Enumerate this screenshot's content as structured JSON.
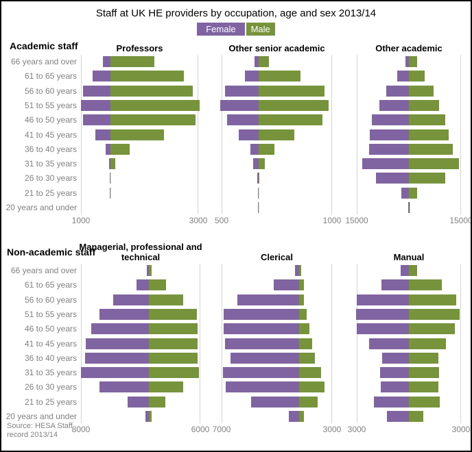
{
  "page": {
    "title": "Staff at UK HE providers by occupation, age and sex 2013/14",
    "section_labels": {
      "academic": "Academic staff",
      "non_academic": "Non-academic staff"
    },
    "legend": {
      "female": "Female",
      "male": "Male"
    },
    "source": "Source: HESA Staff record 2013/14"
  },
  "colors": {
    "female": "#8064a2",
    "male": "#77933c",
    "axis_text": "#808080",
    "gridline": "#d3d3d3",
    "near_zero_tick": "#595959"
  },
  "chart_data": {
    "type": "bar",
    "subtype": "population-pyramid-small-multiples",
    "title": "Staff at UK HE providers by occupation, age and sex 2013/14",
    "legend_entries": [
      "Female",
      "Male"
    ],
    "legend_position": "top-center",
    "orientation": "female-left-male-right",
    "grid": "vertical-edge-gridlines-only",
    "categories": [
      "66 years and over",
      "61 to 65 years",
      "56 to 60 years",
      "51 to 55 years",
      "46 to 50 years",
      "41 to 45 years",
      "36 to 40 years",
      "31 to 35 years",
      "26 to 30 years",
      "21 to 25 years",
      "20 years and under"
    ],
    "charts": [
      {
        "title": "Professors",
        "section": "Academic staff",
        "female_axis_max": 1000,
        "male_axis_max": 3000,
        "axis_labels": {
          "left": "1000",
          "right": "3000"
        },
        "series": [
          {
            "name": "Female",
            "values": [
              240,
              610,
              940,
              1000,
              920,
              520,
              165,
              40,
              10,
              5,
              0
            ]
          },
          {
            "name": "Male",
            "values": [
              1500,
              2510,
              2820,
              3050,
              2900,
              1830,
              660,
              160,
              20,
              10,
              0
            ]
          }
        ]
      },
      {
        "title": "Other senior academic",
        "section": "Academic staff",
        "female_axis_max": 500,
        "male_axis_max": 1000,
        "axis_labels": {
          "left": "500",
          "right": "1000"
        },
        "series": [
          {
            "name": "Female",
            "values": [
              50,
              180,
              450,
              520,
              430,
              265,
              110,
              70,
              20,
              5,
              3
            ]
          },
          {
            "name": "Male",
            "values": [
              140,
              570,
              900,
              950,
              870,
              485,
              220,
              85,
              10,
              5,
              3
            ]
          }
        ]
      },
      {
        "title": "Other academic",
        "section": "Academic staff",
        "female_axis_max": 15000,
        "male_axis_max": 15000,
        "axis_labels": {
          "left": "15000",
          "right": "15000"
        },
        "series": [
          {
            "name": "Female",
            "values": [
              1000,
              3400,
              6500,
              8500,
              10700,
              11300,
              11500,
              13500,
              9500,
              2200,
              50
            ]
          },
          {
            "name": "Male",
            "values": [
              2400,
              4600,
              7200,
              8600,
              10500,
              11500,
              12700,
              14500,
              10500,
              2400,
              50
            ]
          }
        ]
      },
      {
        "title": "Managerial, professional and technical",
        "section": "Non-academic staff",
        "female_axis_max": 8000,
        "male_axis_max": 6000,
        "axis_labels": {
          "left": "8000",
          "right": "6000"
        },
        "series": [
          {
            "name": "Female",
            "values": [
              250,
              1450,
              4250,
              5850,
              6800,
              7400,
              7500,
              8000,
              5800,
              2550,
              450
            ]
          },
          {
            "name": "Male",
            "values": [
              250,
              2000,
              4000,
              5600,
              5700,
              5700,
              5700,
              5850,
              4000,
              1900,
              300
            ]
          }
        ]
      },
      {
        "title": "Clerical",
        "section": "Non-academic staff",
        "female_axis_max": 7000,
        "male_axis_max": 3000,
        "axis_labels": {
          "left": "7000",
          "right": "3000"
        },
        "series": [
          {
            "name": "Female",
            "values": [
              330,
              2280,
              5600,
              6830,
              6830,
              6700,
              6210,
              6900,
              6650,
              4350,
              890
            ]
          },
          {
            "name": "Male",
            "values": [
              200,
              430,
              450,
              700,
              980,
              1180,
              1450,
              2000,
              2300,
              1700,
              450
            ]
          }
        ]
      },
      {
        "title": "Manual",
        "section": "Non-academic staff",
        "female_axis_max": 3000,
        "male_axis_max": 3000,
        "axis_labels": {
          "left": "3000",
          "right": "3000"
        },
        "series": [
          {
            "name": "Female",
            "values": [
              470,
              1580,
              3000,
              3050,
              3000,
              2290,
              1550,
              1660,
              1620,
              2010,
              1260
            ]
          },
          {
            "name": "Male",
            "values": [
              470,
              1900,
              2730,
              2930,
              2650,
              2130,
              1700,
              1740,
              1700,
              1780,
              830
            ]
          }
        ]
      }
    ]
  }
}
